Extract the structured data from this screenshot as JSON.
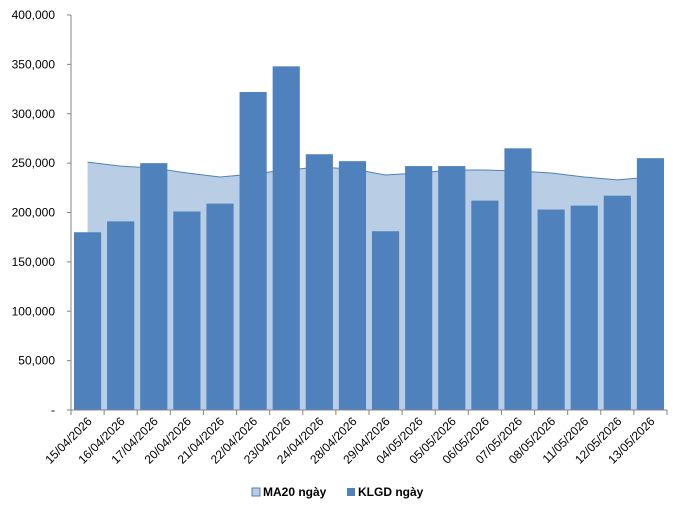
{
  "chart_data": {
    "type": "bar",
    "categories": [
      "15/04/2026",
      "16/04/2026",
      "17/04/2026",
      "20/04/2026",
      "21/04/2026",
      "22/04/2026",
      "23/04/2026",
      "24/04/2026",
      "28/04/2026",
      "29/04/2026",
      "04/05/2026",
      "05/05/2026",
      "06/05/2026",
      "07/05/2026",
      "08/05/2026",
      "11/05/2026",
      "12/05/2026",
      "13/05/2026"
    ],
    "series": [
      {
        "name": "MA20 ngày",
        "type": "area",
        "color": "#b9cde5",
        "stroke": "#4f81bd",
        "values": [
          251000,
          247000,
          245000,
          240000,
          236000,
          239000,
          243000,
          246000,
          244000,
          238000,
          240000,
          243000,
          243000,
          242000,
          240000,
          236000,
          233000,
          236000
        ]
      },
      {
        "name": "KLGD ngày",
        "type": "bar",
        "color": "#4f81bd",
        "values": [
          180000,
          191000,
          250000,
          201000,
          209000,
          322000,
          348000,
          259000,
          252000,
          181000,
          247000,
          247000,
          212000,
          265000,
          203000,
          207000,
          217000,
          255000
        ]
      }
    ],
    "ylim": [
      0,
      400000
    ],
    "yticks": [
      0,
      50000,
      100000,
      150000,
      200000,
      250000,
      300000,
      350000,
      400000
    ],
    "ytick_labels": [
      "-",
      "50,000",
      "100,000",
      "150,000",
      "200,000",
      "250,000",
      "300,000",
      "350,000",
      "400,000"
    ],
    "legend_position": "bottom",
    "grid": false,
    "title": "",
    "xlabel": "",
    "ylabel": ""
  }
}
